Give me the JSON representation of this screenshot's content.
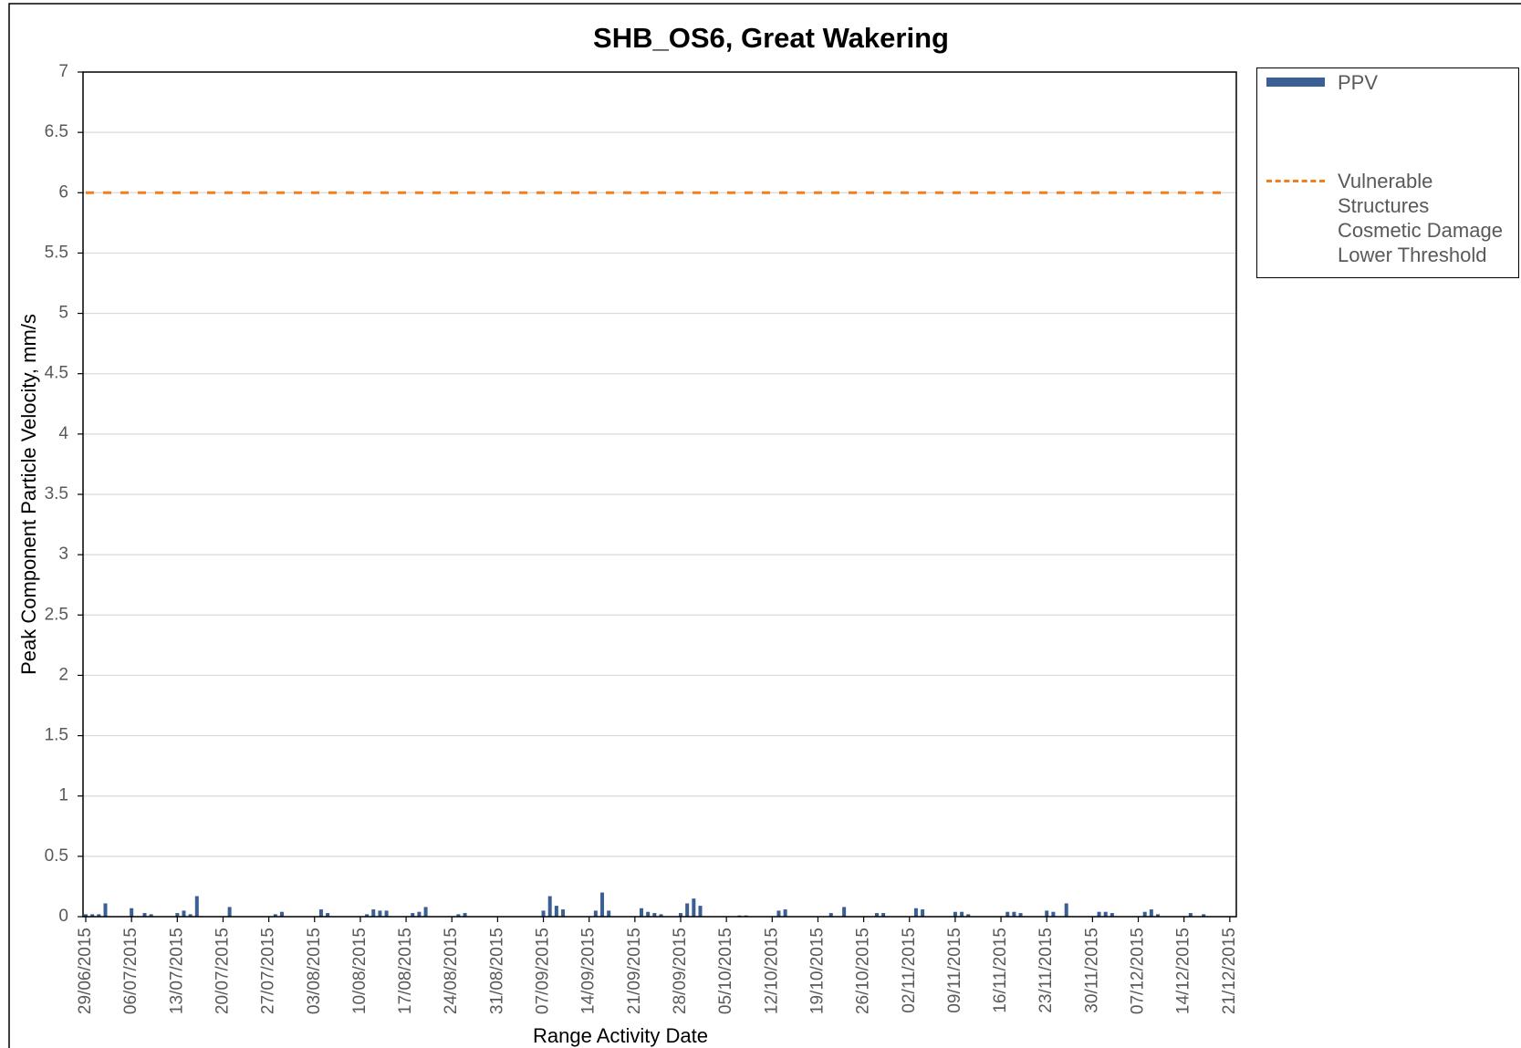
{
  "chart_data": {
    "type": "bar",
    "title": "SHB_OS6, Great Wakering",
    "x_label": "Range Activity Date",
    "y_label": "Peak Component Particle Velocity, mm/s",
    "x": [
      "29/06/2015",
      "30/06/2015",
      "01/07/2015",
      "02/07/2015",
      "06/07/2015",
      "08/07/2015",
      "09/07/2015",
      "13/07/2015",
      "14/07/2015",
      "15/07/2015",
      "16/07/2015",
      "21/07/2015",
      "28/07/2015",
      "29/07/2015",
      "04/08/2015",
      "05/08/2015",
      "11/08/2015",
      "12/08/2015",
      "13/08/2015",
      "14/08/2015",
      "18/08/2015",
      "19/08/2015",
      "20/08/2015",
      "25/08/2015",
      "26/08/2015",
      "07/09/2015",
      "08/09/2015",
      "09/09/2015",
      "10/09/2015",
      "15/09/2015",
      "16/09/2015",
      "17/09/2015",
      "22/09/2015",
      "23/09/2015",
      "24/09/2015",
      "25/09/2015",
      "28/09/2015",
      "29/09/2015",
      "30/09/2015",
      "01/10/2015",
      "07/10/2015",
      "08/10/2015",
      "13/10/2015",
      "14/10/2015",
      "21/10/2015",
      "23/10/2015",
      "28/10/2015",
      "29/10/2015",
      "03/11/2015",
      "04/11/2015",
      "09/11/2015",
      "10/11/2015",
      "11/11/2015",
      "17/11/2015",
      "18/11/2015",
      "19/11/2015",
      "23/11/2015",
      "24/11/2015",
      "26/11/2015",
      "01/12/2015",
      "02/12/2015",
      "03/12/2015",
      "08/12/2015",
      "09/12/2015",
      "10/12/2015",
      "15/12/2015",
      "17/12/2015"
    ],
    "series": [
      {
        "name": "PPV",
        "color": "#3a5f94",
        "values": [
          0.02,
          0.02,
          0.02,
          0.11,
          0.07,
          0.03,
          0.02,
          0.03,
          0.05,
          0.02,
          0.17,
          0.08,
          0.02,
          0.04,
          0.06,
          0.03,
          0.02,
          0.06,
          0.05,
          0.05,
          0.03,
          0.04,
          0.08,
          0.02,
          0.03,
          0.05,
          0.17,
          0.09,
          0.06,
          0.05,
          0.2,
          0.05,
          0.07,
          0.04,
          0.03,
          0.02,
          0.03,
          0.11,
          0.15,
          0.09,
          0.01,
          0.01,
          0.05,
          0.06,
          0.03,
          0.08,
          0.03,
          0.03,
          0.07,
          0.06,
          0.04,
          0.04,
          0.02,
          0.04,
          0.04,
          0.03,
          0.05,
          0.04,
          0.11,
          0.04,
          0.04,
          0.03,
          0.04,
          0.06,
          0.02,
          0.03,
          0.02
        ]
      }
    ],
    "lines": [
      {
        "name": "Vulnerable Structures Cosmetic Damage Lower Threshold",
        "color": "#f07f20",
        "value": 6,
        "style": "dashed"
      }
    ],
    "xlim": [
      "29/06/2015",
      "22/12/2015"
    ],
    "xticks": [
      "29/06/2015",
      "06/07/2015",
      "13/07/2015",
      "20/07/2015",
      "27/07/2015",
      "03/08/2015",
      "10/08/2015",
      "17/08/2015",
      "24/08/2015",
      "31/08/2015",
      "07/09/2015",
      "14/09/2015",
      "21/09/2015",
      "28/09/2015",
      "05/10/2015",
      "12/10/2015",
      "19/10/2015",
      "26/10/2015",
      "02/11/2015",
      "09/11/2015",
      "16/11/2015",
      "23/11/2015",
      "30/11/2015",
      "07/12/2015",
      "14/12/2015",
      "21/12/2015"
    ],
    "ylim": [
      0,
      7
    ],
    "yticks": [
      0,
      0.5,
      1,
      1.5,
      2,
      2.5,
      3,
      3.5,
      4,
      4.5,
      5,
      5.5,
      6,
      6.5,
      7
    ],
    "grid": true,
    "legend": "right"
  }
}
